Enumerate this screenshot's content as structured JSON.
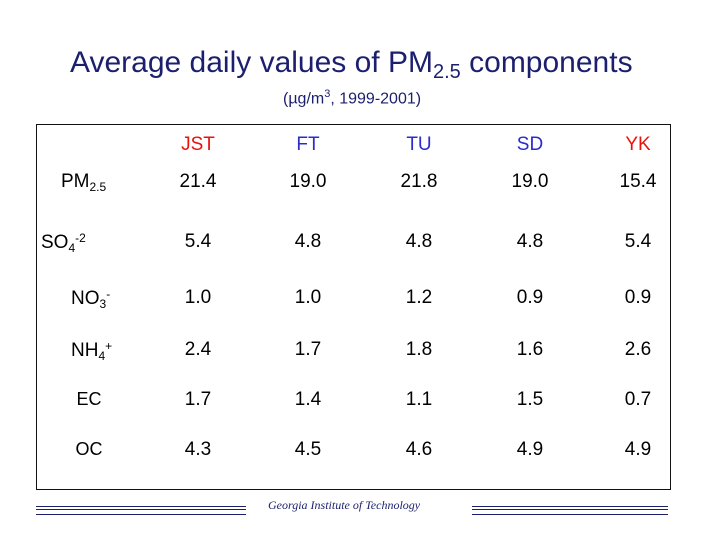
{
  "title": {
    "main": "Average daily values of PM",
    "sub": "2.5",
    "rest": " components"
  },
  "subtitle": {
    "pre": "(µg/m",
    "sup": "3",
    "post": ", 1999-2001)"
  },
  "table": {
    "columns": [
      "JST",
      "FT",
      "TU",
      "SD",
      "YK"
    ],
    "rows": [
      {
        "label_main": "PM",
        "label_sub": "2.5",
        "label_sup": "",
        "values": [
          "21.4",
          "19.0",
          "21.8",
          "19.0",
          "15.4"
        ]
      },
      {
        "label_main": "SO",
        "label_sub": "4",
        "label_sup": "-2",
        "values": [
          "5.4",
          "4.8",
          "4.8",
          "4.8",
          "5.4"
        ]
      },
      {
        "label_main": "NO",
        "label_sub": "3",
        "label_sup": "-",
        "values": [
          "1.0",
          "1.0",
          "1.2",
          "0.9",
          "0.9"
        ]
      },
      {
        "label_main": "NH",
        "label_sub": "4",
        "label_sup": "+",
        "values": [
          "2.4",
          "1.7",
          "1.8",
          "1.6",
          "2.6"
        ]
      },
      {
        "label_main": "EC",
        "label_sub": "",
        "label_sup": "",
        "values": [
          "1.7",
          "1.4",
          "1.1",
          "1.5",
          "0.7"
        ]
      },
      {
        "label_main": "OC",
        "label_sub": "",
        "label_sup": "",
        "values": [
          "4.3",
          "4.5",
          "4.6",
          "4.9",
          "4.9"
        ]
      }
    ]
  },
  "footer": "Georgia Institute of Technology",
  "colors": {
    "title": "#1b1f6e",
    "header_red": "#e8140c",
    "header_blue": "#2a2ccf"
  }
}
